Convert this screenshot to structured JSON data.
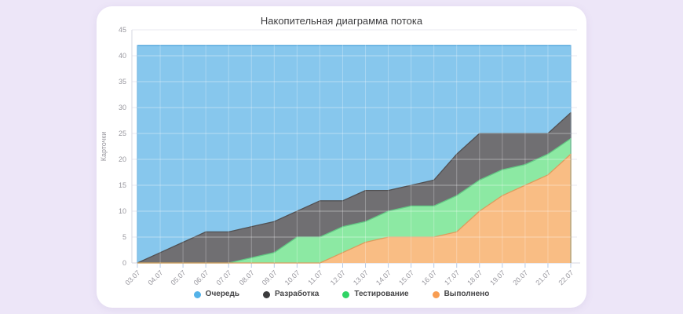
{
  "page": {
    "background_color": "#EDE6F8",
    "card_background": "#FFFFFF"
  },
  "axis_style": {
    "text_color": "#98979E",
    "grid_color": "#E9E8F0",
    "axis_line_color": "#D6D7E2",
    "tick_color": "#B9CBE6"
  },
  "chart_data": {
    "type": "area",
    "stacked": true,
    "title": "Накопительная диаграмма потока",
    "xlabel": "",
    "ylabel": "Карточки",
    "ylim": [
      0,
      45
    ],
    "ytick_step": 5,
    "grid": true,
    "legend_position": "bottom",
    "total_constant": 42,
    "categories": [
      "03.07",
      "04.07",
      "05.07",
      "06.07",
      "07.07",
      "08.07",
      "09.07",
      "10.07",
      "11.07",
      "12.07",
      "13.07",
      "14.07",
      "15.07",
      "16.07",
      "17.07",
      "18.07",
      "19.07",
      "20.07",
      "21.07",
      "22.07"
    ],
    "series": [
      {
        "name": "Выполнено",
        "fill": "#F9BD84",
        "stroke": "#DD9C5E",
        "dot": "#F89D52",
        "values": [
          0,
          0,
          0,
          0,
          0,
          0,
          0,
          0,
          0,
          2,
          4,
          5,
          5,
          5,
          6,
          10,
          13,
          15,
          17,
          21
        ]
      },
      {
        "name": "Тестирование",
        "fill": "#8CE9A3",
        "stroke": "#63CA85",
        "dot": "#30D465",
        "values": [
          0,
          0,
          0,
          0,
          0,
          1,
          2,
          5,
          5,
          5,
          4,
          5,
          6,
          6,
          7,
          6,
          5,
          4,
          4,
          3
        ]
      },
      {
        "name": "Разработка",
        "fill": "#706F72",
        "stroke": "#515052",
        "dot": "#3B3B3D",
        "values": [
          0,
          2,
          4,
          6,
          6,
          6,
          6,
          5,
          7,
          5,
          6,
          4,
          4,
          5,
          8,
          9,
          7,
          6,
          4,
          5
        ]
      },
      {
        "name": "Очередь",
        "fill": "#87C7ED",
        "stroke": "#5AA9DD",
        "dot": "#54B2E8",
        "values": [
          42,
          40,
          38,
          36,
          36,
          35,
          34,
          32,
          30,
          30,
          28,
          28,
          27,
          26,
          21,
          17,
          17,
          17,
          17,
          13
        ]
      }
    ],
    "legend_order": [
      "Очередь",
      "Разработка",
      "Тестирование",
      "Выполнено"
    ]
  }
}
